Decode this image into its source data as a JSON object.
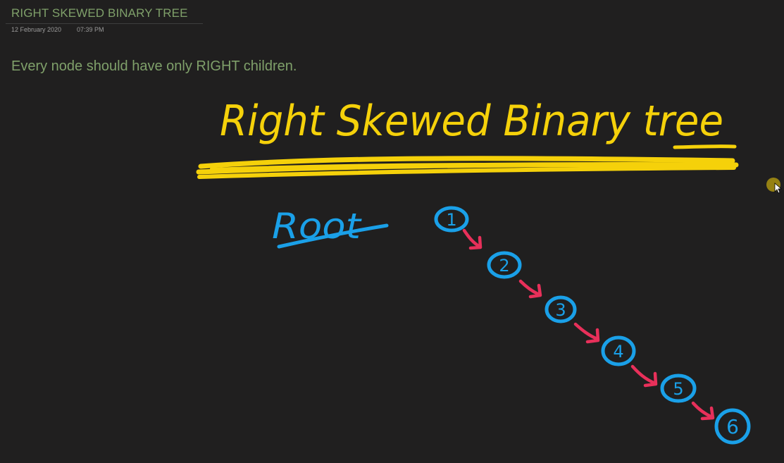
{
  "page": {
    "title": "RIGHT SKEWED BINARY TREE",
    "date": "12 February 2020",
    "time": "07:39 PM",
    "body_text": "Every node should have only RIGHT children."
  },
  "ink": {
    "heading": "Right Skewed Binary tree",
    "root_label": "Root",
    "nodes": [
      "1",
      "2",
      "3",
      "4",
      "5",
      "6"
    ],
    "colors": {
      "heading": "#f5d10a",
      "nodes": "#1aa0e8",
      "arrows": "#e8305a",
      "text": "#7fa06a",
      "background": "#201f1f"
    }
  }
}
